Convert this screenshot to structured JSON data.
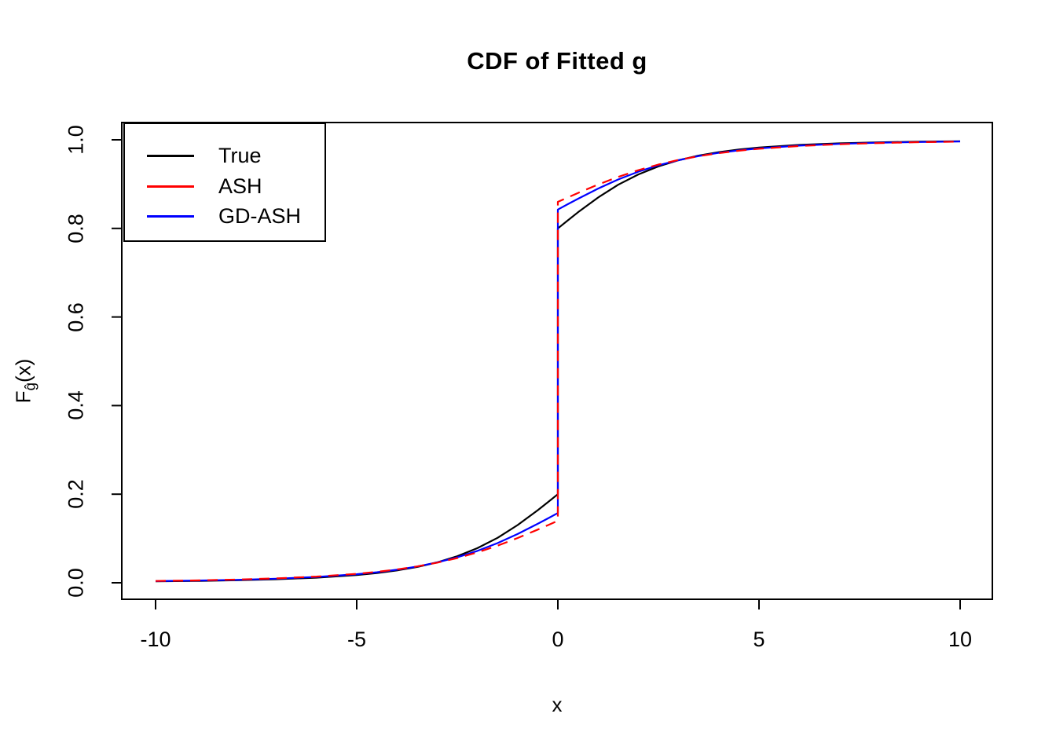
{
  "title": "CDF of Fitted g",
  "labels": {
    "x_axis": "x",
    "y_axis_main": "F",
    "y_axis_sub": "ĝ",
    "y_axis_suffix": "(x)"
  },
  "legend": {
    "position": "top-left",
    "entries": [
      {
        "label": "True",
        "color": "#000000",
        "line_style": "solid"
      },
      {
        "label": "ASH",
        "color": "#ff0000",
        "line_style": "dashed"
      },
      {
        "label": "GD-ASH",
        "color": "#0000ff",
        "line_style": "solid"
      }
    ]
  },
  "chart_data": {
    "type": "line",
    "title": "CDF of Fitted g",
    "xlabel": "x",
    "ylabel": "F_ĝ(x)",
    "xlim": [
      -10,
      10
    ],
    "ylim": [
      0.0,
      1.0
    ],
    "grid": false,
    "x_ticks": [
      -10,
      -5,
      0,
      5,
      10
    ],
    "x_tick_labels": [
      "-10",
      "-5",
      "0",
      "5",
      "10"
    ],
    "y_ticks": [
      0.0,
      0.2,
      0.4,
      0.6,
      0.8,
      1.0
    ],
    "y_tick_labels": [
      "0.0",
      "0.2",
      "0.4",
      "0.6",
      "0.8",
      "1.0"
    ],
    "description": "Three CDFs with a point mass at x=0: True jumps from 0.20 to 0.80, ASH from 0.14 to 0.86, GD-ASH from 0.1575 to 0.8425.",
    "series": [
      {
        "name": "True",
        "color": "#000000",
        "line_style": "solid",
        "points": [
          [
            -10,
            0.0032
          ],
          [
            -9,
            0.0041
          ],
          [
            -8,
            0.0056
          ],
          [
            -7,
            0.0079
          ],
          [
            -6,
            0.0115
          ],
          [
            -5,
            0.0175
          ],
          [
            -4.5,
            0.022
          ],
          [
            -4,
            0.0279
          ],
          [
            -3.5,
            0.0357
          ],
          [
            -3,
            0.0461
          ],
          [
            -2.5,
            0.06
          ],
          [
            -2,
            0.0782
          ],
          [
            -1.5,
            0.1015
          ],
          [
            -1,
            0.1303
          ],
          [
            -0.5,
            0.1638
          ],
          [
            -0.25,
            0.1817
          ],
          [
            0,
            0.2
          ],
          [
            0,
            0.8
          ],
          [
            0.25,
            0.8183
          ],
          [
            0.5,
            0.8363
          ],
          [
            1,
            0.8697
          ],
          [
            1.5,
            0.8985
          ],
          [
            2,
            0.9218
          ],
          [
            2.5,
            0.94
          ],
          [
            3,
            0.9539
          ],
          [
            3.5,
            0.9643
          ],
          [
            4,
            0.9721
          ],
          [
            4.5,
            0.9781
          ],
          [
            5,
            0.9825
          ],
          [
            6,
            0.9885
          ],
          [
            7,
            0.9921
          ],
          [
            8,
            0.9944
          ],
          [
            9,
            0.9959
          ],
          [
            10,
            0.9968
          ]
        ]
      },
      {
        "name": "ASH",
        "color": "#ff0000",
        "line_style": "dashed",
        "points": [
          [
            -10,
            0.0041
          ],
          [
            -9,
            0.0054
          ],
          [
            -8,
            0.0073
          ],
          [
            -7,
            0.01
          ],
          [
            -6,
            0.014
          ],
          [
            -5,
            0.0203
          ],
          [
            -4.5,
            0.0246
          ],
          [
            -4,
            0.0301
          ],
          [
            -3.5,
            0.0369
          ],
          [
            -3,
            0.0454
          ],
          [
            -2.5,
            0.0559
          ],
          [
            -2,
            0.0686
          ],
          [
            -1.5,
            0.0837
          ],
          [
            -1,
            0.101
          ],
          [
            -0.5,
            0.12
          ],
          [
            -0.25,
            0.13
          ],
          [
            0,
            0.14
          ],
          [
            0,
            0.86
          ],
          [
            0.25,
            0.87
          ],
          [
            0.5,
            0.88
          ],
          [
            1,
            0.899
          ],
          [
            1.5,
            0.9163
          ],
          [
            2,
            0.9314
          ],
          [
            2.5,
            0.9441
          ],
          [
            3,
            0.9546
          ],
          [
            3.5,
            0.9631
          ],
          [
            4,
            0.9699
          ],
          [
            4.5,
            0.9754
          ],
          [
            5,
            0.9797
          ],
          [
            6,
            0.986
          ],
          [
            7,
            0.99
          ],
          [
            8,
            0.9927
          ],
          [
            9,
            0.9946
          ],
          [
            10,
            0.9959
          ]
        ]
      },
      {
        "name": "GD-ASH",
        "color": "#0000ff",
        "line_style": "solid",
        "points": [
          [
            -10,
            0.0038
          ],
          [
            -9,
            0.0049
          ],
          [
            -8,
            0.0066
          ],
          [
            -7,
            0.0093
          ],
          [
            -6,
            0.0132
          ],
          [
            -5,
            0.0194
          ],
          [
            -4.5,
            0.0238
          ],
          [
            -4,
            0.0295
          ],
          [
            -3.5,
            0.0367
          ],
          [
            -3,
            0.0459
          ],
          [
            -2.5,
            0.0575
          ],
          [
            -2,
            0.072
          ],
          [
            -1.5,
            0.0896
          ],
          [
            -1,
            0.1101
          ],
          [
            -0.5,
            0.1331
          ],
          [
            -0.25,
            0.1452
          ],
          [
            0,
            0.1575
          ],
          [
            0,
            0.8425
          ],
          [
            0.25,
            0.8548
          ],
          [
            0.5,
            0.8669
          ],
          [
            1,
            0.8899
          ],
          [
            1.5,
            0.9104
          ],
          [
            2,
            0.928
          ],
          [
            2.5,
            0.9425
          ],
          [
            3,
            0.9541
          ],
          [
            3.5,
            0.9633
          ],
          [
            4,
            0.9705
          ],
          [
            4.5,
            0.9762
          ],
          [
            5,
            0.9806
          ],
          [
            6,
            0.9868
          ],
          [
            7,
            0.9907
          ],
          [
            8,
            0.9934
          ],
          [
            9,
            0.9951
          ],
          [
            10,
            0.9962
          ]
        ]
      }
    ]
  }
}
